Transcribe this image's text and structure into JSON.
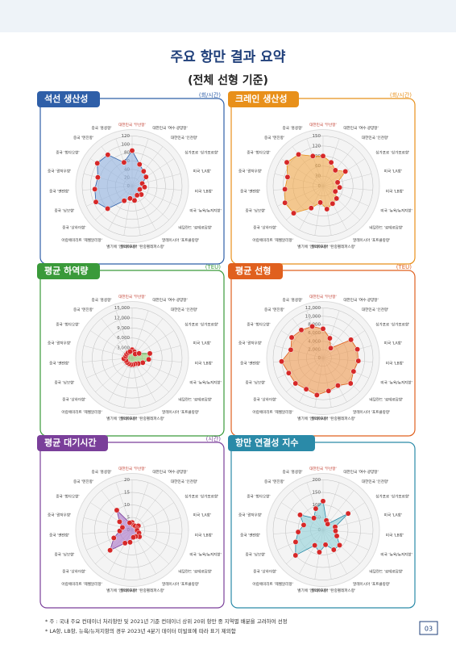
{
  "header": {
    "title": "주요 항만 결과 요약",
    "subtitle": "(전체 선형 기준)"
  },
  "chart_data": [
    {
      "type": "radar",
      "title": "석선 생산성",
      "unit": "(회/시간)",
      "color": "#2f5fa8",
      "fill": "#8fb0e0",
      "categories": [
        "대한민국 '부산항'",
        "대한민국 '여수·광양항'",
        "대한민국 '인천항'",
        "싱가포르 '싱가포르항'",
        "미국 'LA항'",
        "미국 'LB항'",
        "미국 '뉴욕/뉴저지항'",
        "네덜란드 '로테르담항'",
        "말레이시아 '포트클랑항'",
        "말레이시아 '탄중펠레파스항'",
        "벨기에 '앤트워프항'",
        "아랍에미리트 '제벨알리항'",
        "중국 '상하이항'",
        "중국 '닝보항'",
        "중국 '옌텐항'",
        "중국 '광저우항'",
        "중국 '청다오항'",
        "중국 '텐진항'",
        "중국 '홍콩항'"
      ],
      "values": [
        85,
        55,
        45,
        40,
        25,
        30,
        20,
        30,
        25,
        35,
        30,
        40,
        80,
        95,
        90,
        85,
        100,
        95,
        60
      ],
      "ylim": [
        0,
        120
      ],
      "yticks": [
        0,
        20,
        40,
        60,
        80,
        100,
        120
      ]
    },
    {
      "type": "radar",
      "title": "크레인 생산성",
      "unit": "(회/시간)",
      "color": "#e8901a",
      "fill": "#f2a84a",
      "categories": [
        "대한민국 '부산항'",
        "대한민국 '여수·광양항'",
        "대한민국 '인천항'",
        "싱가포르 '싱가포르항'",
        "미국 'LA항'",
        "미국 'LB항'",
        "미국 '뉴욕/뉴저지항'",
        "네덜란드 '로테르담항'",
        "말레이시아 '포트클랑항'",
        "말레이시아 '탄중펠레파스항'",
        "벨기에 '앤트워프항'",
        "아랍에미리트 '제벨알리항'",
        "중국 '상하이항'",
        "중국 '닝보항'",
        "중국 '옌텐항'",
        "중국 '광저우항'",
        "중국 '청다오항'",
        "중국 '텐진항'",
        "중국 '홍콩항'"
      ],
      "values": [
        90,
        75,
        60,
        80,
        45,
        50,
        40,
        55,
        60,
        70,
        50,
        75,
        120,
        125,
        115,
        110,
        130,
        120,
        95
      ],
      "ylim": [
        0,
        150
      ],
      "yticks": [
        0,
        30,
        60,
        90,
        120,
        150
      ]
    },
    {
      "type": "radar",
      "title": "평균 하역량",
      "unit": "(TEU)",
      "color": "#3a9a3a",
      "fill": "#8fd06f",
      "categories": [
        "대한민국 '부산항'",
        "대한민국 '여수·광양항'",
        "대한민국 '인천항'",
        "싱가포르 '싱가포르항'",
        "미국 'LA항'",
        "미국 'LB항'",
        "미국 '뉴욕/뉴저지항'",
        "네덜란드 '로테르담항'",
        "말레이시아 '포트클랑항'",
        "말레이시아 '탄중펠레파스항'",
        "벨기에 '앤트워프항'",
        "아랍에미리트 '제벨알리항'",
        "중국 '상하이항'",
        "중국 '닝보항'",
        "중국 '옌텐항'",
        "중국 '광저우항'",
        "중국 '청다오항'",
        "중국 '텐진항'",
        "중국 '홍콩항'"
      ],
      "values": [
        2500,
        2000,
        1500,
        2500,
        5500,
        5000,
        3500,
        2500,
        2000,
        2000,
        2000,
        2000,
        2000,
        2000,
        2500,
        2000,
        2000,
        2000,
        2000
      ],
      "ylim": [
        0,
        15000
      ],
      "yticks": [
        0,
        {
          "value": 3000,
          "label": "3,000"
        },
        {
          "value": 6000,
          "label": "6,000"
        },
        {
          "value": 9000,
          "label": "9,000"
        },
        {
          "value": 12000,
          "label": "12,000"
        },
        {
          "value": 15000,
          "label": "15,000"
        }
      ]
    },
    {
      "type": "radar",
      "title": "평균 선형",
      "unit": "(TEU)",
      "color": "#e0601e",
      "fill": "#ee9a50",
      "categories": [
        "대한민국 '부산항'",
        "대한민국 '여수·광양항'",
        "대한민국 '인천항'",
        "싱가포르 '싱가포르항'",
        "미국 'LA항'",
        "미국 'LB항'",
        "미국 '뉴욕/뉴저지항'",
        "네덜란드 '로테르담항'",
        "말레이시아 '포트클랑항'",
        "말레이시아 '탄중펠레파스항'",
        "벨기에 '앤트워프항'",
        "아랍에미리트 '제벨알리항'",
        "중국 '상하이항'",
        "중국 '닝보항'",
        "중국 '옌텐항'",
        "중국 '광저우항'",
        "중국 '청다오항'",
        "중국 '텐진항'",
        "중국 '홍콩항'"
      ],
      "values": [
        7000,
        5000,
        3000,
        8000,
        8500,
        8500,
        8000,
        9000,
        7500,
        8000,
        9000,
        8500,
        9000,
        9000,
        10000,
        8000,
        9000,
        8500,
        8000
      ],
      "ylim": [
        0,
        12000
      ],
      "yticks": [
        0,
        {
          "value": 2000,
          "label": "2,000"
        },
        {
          "value": 4000,
          "label": "4,000"
        },
        {
          "value": 6000,
          "label": "6,000"
        },
        {
          "value": 8000,
          "label": "8,000"
        },
        {
          "value": 10000,
          "label": "10,000"
        },
        {
          "value": 12000,
          "label": "12,000"
        }
      ]
    },
    {
      "type": "radar",
      "title": "평균 대기시간",
      "unit": "(시간)",
      "color": "#7a3f9a",
      "fill": "#a872c8",
      "categories": [
        "대한민국 '부산항'",
        "대한민국 '여수·광양항'",
        "대한민국 '인천항'",
        "싱가포르 '싱가포르항'",
        "미국 'LA항'",
        "미국 'LB항'",
        "미국 '뉴욕/뉴저지항'",
        "네덜란드 '로테르담항'",
        "말레이시아 '포트클랑항'",
        "말레이시아 '탄중펠레파스항'",
        "벨기에 '앤트워프항'",
        "아랍에미리트 '제벨알리항'",
        "중국 '상하이항'",
        "중국 '닝보항'",
        "중국 '옌텐항'",
        "중국 '광저우항'",
        "중국 '청다오항'",
        "중국 '텐진항'",
        "중국 '홍콩항'"
      ],
      "values": [
        3,
        2,
        2,
        3,
        2,
        2,
        3,
        4,
        3,
        3,
        5,
        6,
        12,
        8,
        5,
        4,
        6,
        10,
        3
      ],
      "ylim": [
        0,
        20
      ],
      "yticks": [
        0,
        5,
        10,
        15,
        20
      ]
    },
    {
      "type": "radar",
      "title": "항만 연결성 지수",
      "unit": "",
      "color": "#2a8aa8",
      "fill": "#8fd0d8",
      "categories": [
        "대한민국 '부산항'",
        "대한민국 '여수·광양항'",
        "대한민국 '인천항'",
        "싱가포르 '싱가포르항'",
        "미국 'LA항'",
        "미국 'LB항'",
        "미국 '뉴욕/뉴저지항'",
        "네덜란드 '로테르담항'",
        "말레이시아 '포트클랑항'",
        "말레이시아 '탄중펠레파스항'",
        "벨기에 '앤트워프항'",
        "아랍에미리트 '제벨알리항'",
        "중국 '상하이항'",
        "중국 '닝보항'",
        "중국 '옌텐항'",
        "중국 '광저우항'",
        "중국 '청다오항'",
        "중국 '텐진항'",
        "중국 '홍콩항'"
      ],
      "values": [
        115,
        40,
        30,
        120,
        50,
        50,
        60,
        90,
        90,
        60,
        90,
        70,
        150,
        120,
        100,
        80,
        110,
        60,
        90
      ],
      "ylim": [
        0,
        200
      ],
      "yticks": [
        0,
        50,
        100,
        150,
        200
      ]
    }
  ],
  "notes": [
    "* 주 : 국내 주요 컨테이너 처리항만 및 2021년 기준 컨테이너 상위 20위 항만 중 지역별 배분을 고려하여 선정",
    "* LA항, LB항, 뉴욕/뉴저지항의 경우 2023년 4분기 데이터 미발표에 따라 표기 제외함"
  ],
  "page_number": "03"
}
